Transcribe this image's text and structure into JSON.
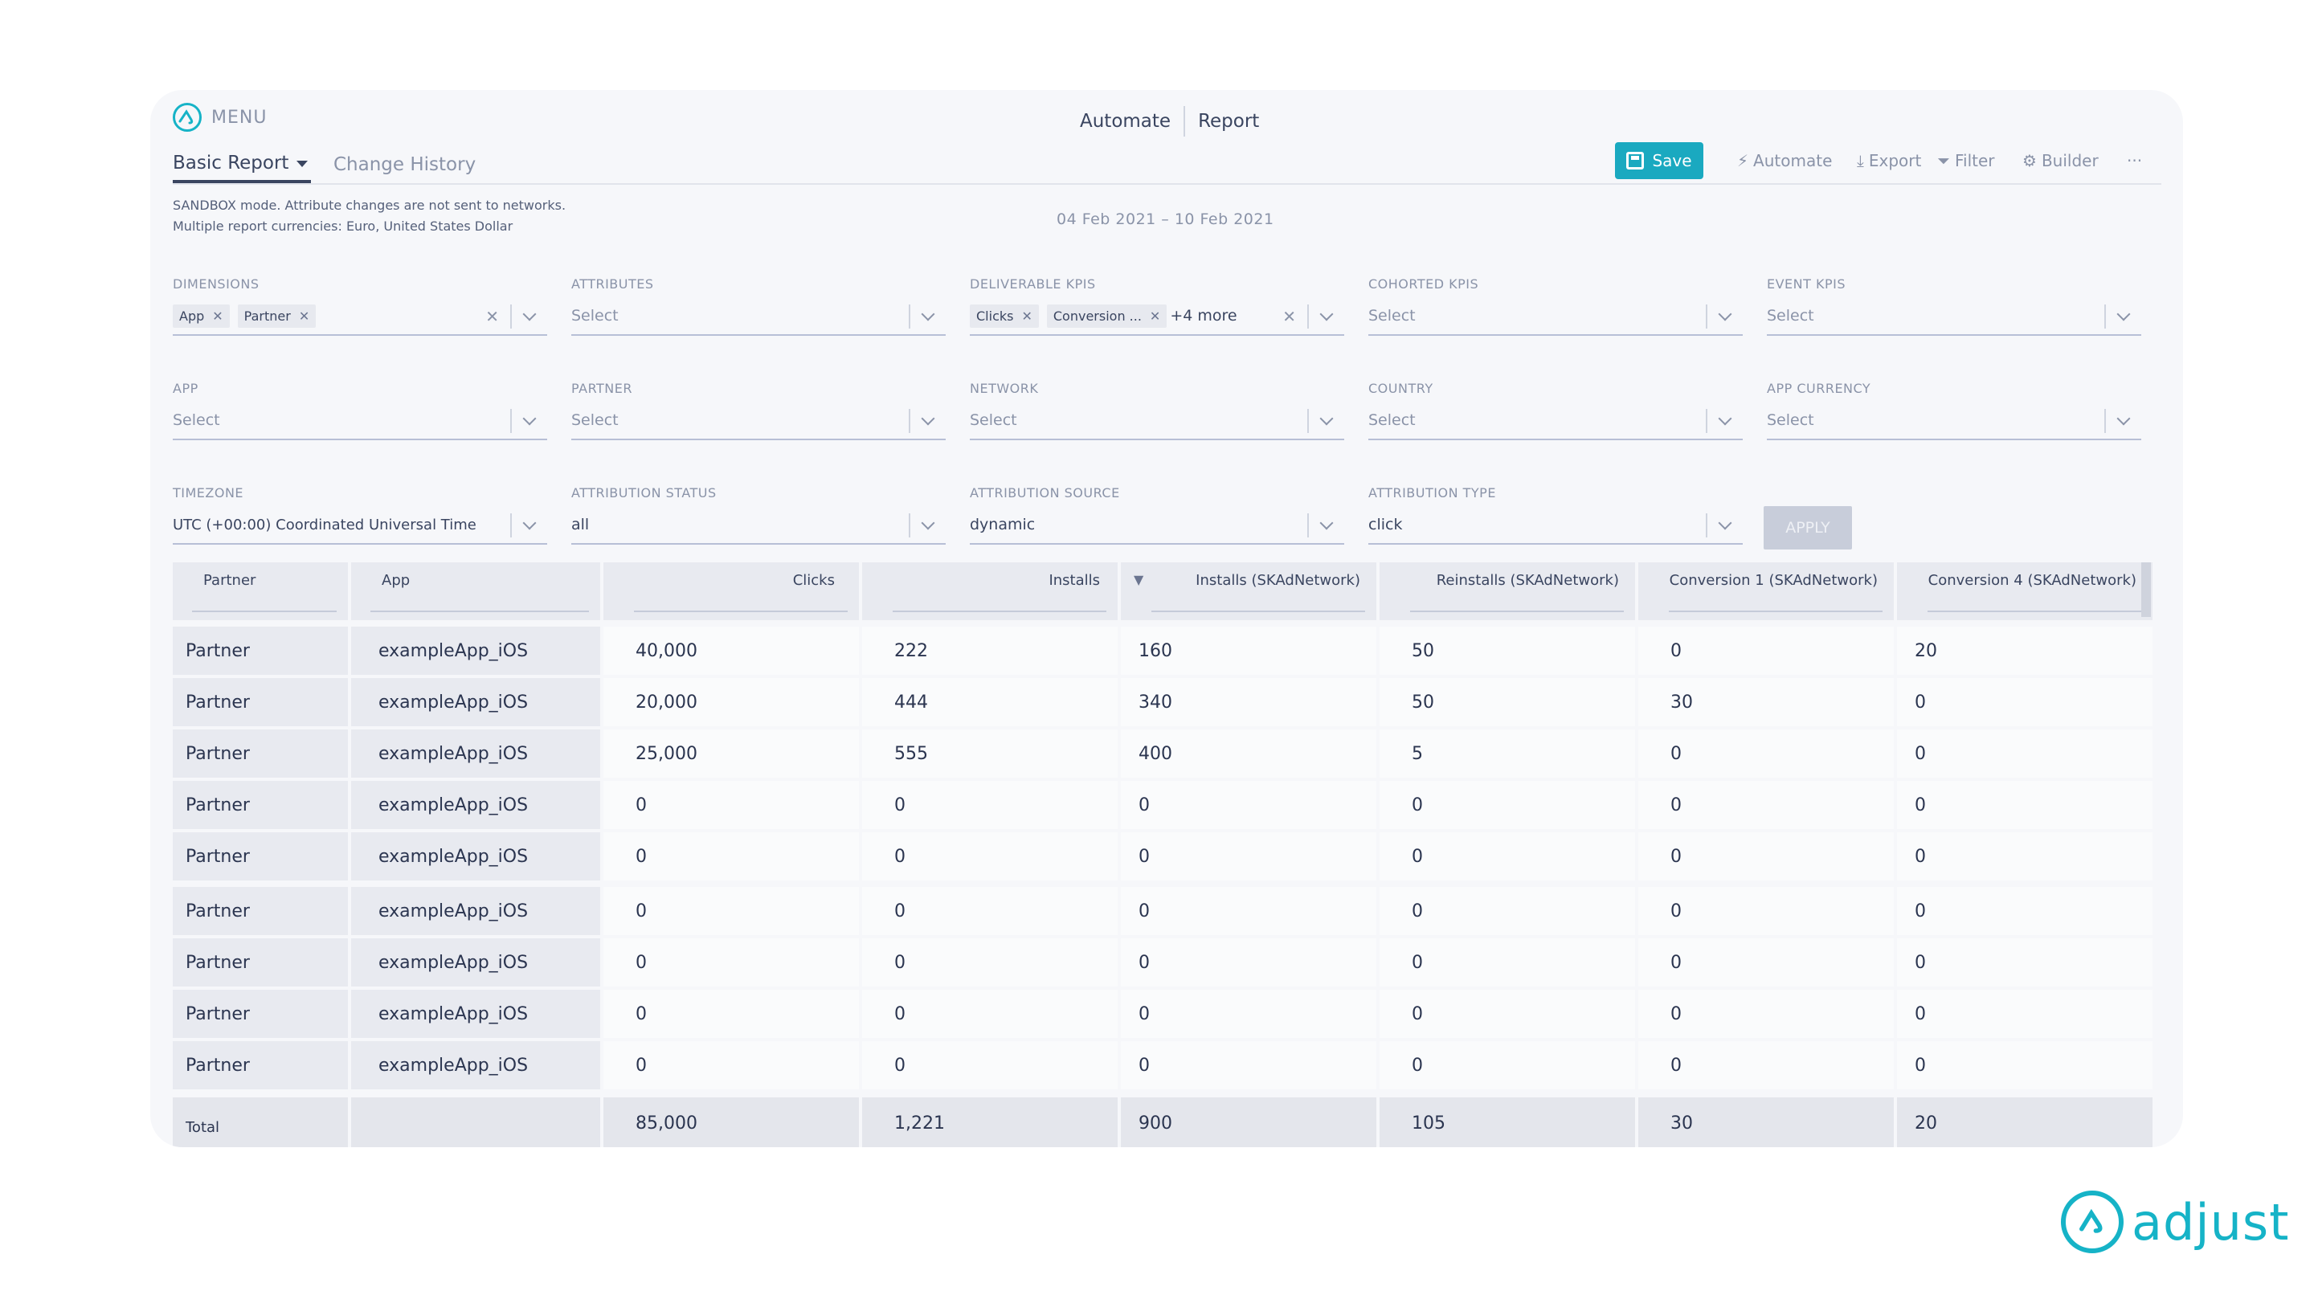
{
  "menu_label": "MENU",
  "topnav": {
    "automate": "Automate",
    "report": "Report"
  },
  "tabs": {
    "active": "Basic Report",
    "second": "Change History"
  },
  "toolbar": {
    "save": "Save",
    "automate": "Automate",
    "export": "Export",
    "filter": "Filter",
    "builder": "Builder",
    "more": "···"
  },
  "notes": {
    "line1": "SANDBOX mode. Attribute changes are not sent to networks.",
    "line2": "Multiple report currencies: Euro, United States Dollar"
  },
  "date_range": "04 Feb 2021 – 10 Feb 2021",
  "filters": {
    "dimensions": {
      "label": "DIMENSIONS",
      "chips": [
        "App",
        "Partner"
      ]
    },
    "attributes": {
      "label": "ATTRIBUTES",
      "placeholder": "Select"
    },
    "deliverable_kpis": {
      "label": "DELIVERABLE KPIS",
      "chips": [
        "Clicks",
        "Conversion ..."
      ],
      "more": "+4 more"
    },
    "cohorted_kpis": {
      "label": "COHORTED KPIS",
      "placeholder": "Select"
    },
    "event_kpis": {
      "label": "EVENT KPIS",
      "placeholder": "Select"
    },
    "app": {
      "label": "APP",
      "placeholder": "Select"
    },
    "partner": {
      "label": "PARTNER",
      "placeholder": "Select"
    },
    "network": {
      "label": "NETWORK",
      "placeholder": "Select"
    },
    "country": {
      "label": "COUNTRY",
      "placeholder": "Select"
    },
    "app_currency": {
      "label": "APP CURRENCY",
      "placeholder": "Select"
    },
    "timezone": {
      "label": "TIMEZONE",
      "value": "UTC (+00:00) Coordinated Universal Time"
    },
    "attribution_status": {
      "label": "ATTRIBUTION STATUS",
      "value": "all"
    },
    "attribution_source": {
      "label": "ATTRIBUTION SOURCE",
      "value": "dynamic"
    },
    "attribution_type": {
      "label": "ATTRIBUTION TYPE",
      "value": "click"
    },
    "apply": "APPLY"
  },
  "table": {
    "columns": [
      "Partner",
      "App",
      "Clicks",
      "Installs",
      "Installs (SKAdNetwork)",
      "Reinstalls (SKAdNetwork)",
      "Conversion 1 (SKAdNetwork)",
      "Conversion 4 (SKAdNetwork)"
    ],
    "rows": [
      [
        "Partner",
        "exampleApp_iOS",
        "40,000",
        "222",
        "160",
        "50",
        "0",
        "20"
      ],
      [
        "Partner",
        "exampleApp_iOS",
        "20,000",
        "444",
        "340",
        "50",
        "30",
        "0"
      ],
      [
        "Partner",
        "exampleApp_iOS",
        "25,000",
        "555",
        "400",
        "5",
        "0",
        "0"
      ],
      [
        "Partner",
        "exampleApp_iOS",
        "0",
        "0",
        "0",
        "0",
        "0",
        "0"
      ],
      [
        "Partner",
        "exampleApp_iOS",
        "0",
        "0",
        "0",
        "0",
        "0",
        "0"
      ],
      [
        "Partner",
        "exampleApp_iOS",
        "0",
        "0",
        "0",
        "0",
        "0",
        "0"
      ],
      [
        "Partner",
        "exampleApp_iOS",
        "0",
        "0",
        "0",
        "0",
        "0",
        "0"
      ],
      [
        "Partner",
        "exampleApp_iOS",
        "0",
        "0",
        "0",
        "0",
        "0",
        "0"
      ],
      [
        "Partner",
        "exampleApp_iOS",
        "0",
        "0",
        "0",
        "0",
        "0",
        "0"
      ]
    ],
    "total": [
      "Total",
      "",
      "85,000",
      "1,221",
      "900",
      "105",
      "30",
      "20"
    ]
  },
  "brand": "adjust",
  "colors": {
    "accent": "#1aa9c0",
    "text": "#3a4560",
    "muted": "#8a93a8"
  }
}
